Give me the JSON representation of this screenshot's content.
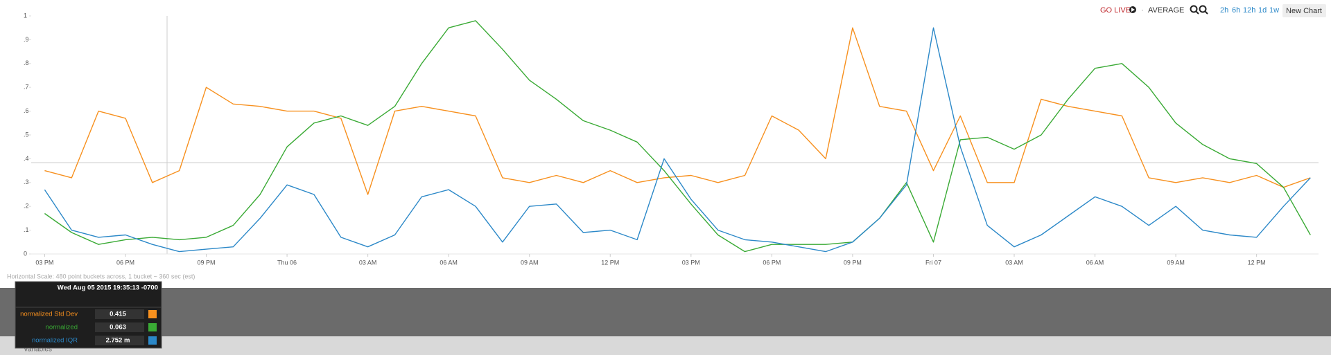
{
  "toolbar": {
    "go_live": "GO LIVE",
    "separator": "·",
    "mode": "AVERAGE",
    "ranges": [
      "2h",
      "6h",
      "12h",
      "1d",
      "1w"
    ],
    "new_chart": "New Chart"
  },
  "chart_data": {
    "type": "line",
    "x": [
      0,
      1,
      2,
      3,
      4,
      5,
      6,
      7,
      8,
      9,
      10,
      11,
      12,
      13,
      14,
      15,
      16,
      17,
      18,
      19,
      20,
      21,
      22,
      23,
      24,
      25,
      26,
      27,
      28,
      29,
      30,
      31,
      32,
      33,
      34,
      35,
      36,
      37,
      38,
      39,
      40,
      41,
      42,
      43,
      44,
      45,
      46,
      47
    ],
    "xlim": [
      -0.5,
      47.3
    ],
    "xticks": [
      {
        "value": 0,
        "label": "03 PM"
      },
      {
        "value": 3,
        "label": "06 PM"
      },
      {
        "value": 6,
        "label": "09 PM"
      },
      {
        "value": 9,
        "label": "Thu 06"
      },
      {
        "value": 12,
        "label": "03 AM"
      },
      {
        "value": 15,
        "label": "06 AM"
      },
      {
        "value": 18,
        "label": "09 AM"
      },
      {
        "value": 21,
        "label": "12 PM"
      },
      {
        "value": 24,
        "label": "03 PM"
      },
      {
        "value": 27,
        "label": "06 PM"
      },
      {
        "value": 30,
        "label": "09 PM"
      },
      {
        "value": 33,
        "label": "Fri 07"
      },
      {
        "value": 36,
        "label": "03 AM"
      },
      {
        "value": 39,
        "label": "06 AM"
      },
      {
        "value": 42,
        "label": "09 AM"
      },
      {
        "value": 45,
        "label": "12 PM"
      }
    ],
    "ylim": [
      0,
      1
    ],
    "yticks": [
      0,
      {
        "value": 0.1,
        "label": ".1"
      },
      {
        "value": 0.2,
        "label": ".2"
      },
      {
        "value": 0.3,
        "label": ".3"
      },
      {
        "value": 0.4,
        "label": ".4"
      },
      {
        "value": 0.5,
        "label": ".5"
      },
      {
        "value": 0.6,
        "label": ".6"
      },
      {
        "value": 0.7,
        "label": ".7"
      },
      {
        "value": 0.8,
        "label": ".8"
      },
      {
        "value": 0.9,
        "label": ".9"
      },
      1
    ],
    "series": [
      {
        "name": "normalized Std Dev",
        "color": "#f7901e",
        "values": [
          0.35,
          0.32,
          0.6,
          0.57,
          0.3,
          0.35,
          0.7,
          0.63,
          0.62,
          0.6,
          0.6,
          0.57,
          0.25,
          0.6,
          0.62,
          0.6,
          0.58,
          0.32,
          0.3,
          0.33,
          0.3,
          0.35,
          0.3,
          0.32,
          0.33,
          0.3,
          0.33,
          0.58,
          0.52,
          0.4,
          0.95,
          0.62,
          0.6,
          0.35,
          0.58,
          0.3,
          0.3,
          0.65,
          0.62,
          0.6,
          0.58,
          0.32,
          0.3,
          0.32,
          0.3,
          0.33,
          0.28,
          0.32
        ]
      },
      {
        "name": "normalized",
        "color": "#3aaa35",
        "values": [
          0.17,
          0.09,
          0.04,
          0.06,
          0.07,
          0.06,
          0.07,
          0.12,
          0.25,
          0.45,
          0.55,
          0.58,
          0.54,
          0.62,
          0.8,
          0.95,
          0.98,
          0.86,
          0.73,
          0.65,
          0.56,
          0.52,
          0.47,
          0.35,
          0.21,
          0.08,
          0.01,
          0.04,
          0.04,
          0.04,
          0.05,
          0.15,
          0.3,
          0.05,
          0.48,
          0.49,
          0.44,
          0.5,
          0.65,
          0.78,
          0.8,
          0.7,
          0.55,
          0.46,
          0.4,
          0.38,
          0.28,
          0.08
        ]
      },
      {
        "name": "normalized IQR",
        "color": "#2b88c8",
        "values": [
          0.27,
          0.1,
          0.07,
          0.08,
          0.04,
          0.01,
          0.02,
          0.03,
          0.15,
          0.29,
          0.25,
          0.07,
          0.03,
          0.08,
          0.24,
          0.27,
          0.2,
          0.05,
          0.2,
          0.21,
          0.09,
          0.1,
          0.06,
          0.4,
          0.23,
          0.1,
          0.06,
          0.05,
          0.03,
          0.01,
          0.05,
          0.15,
          0.29,
          0.95,
          0.45,
          0.12,
          0.03,
          0.08,
          0.16,
          0.24,
          0.2,
          0.12,
          0.2,
          0.1,
          0.08,
          0.07,
          0.2,
          0.32
        ]
      }
    ]
  },
  "scale_note": "Horizontal Scale: 480 point buckets across, 1 bucket ~ 360 sec (est)",
  "variables": "Variables",
  "tooltip": {
    "title": "Wed Aug 05 2015 19:35:13 -0700",
    "rows": [
      {
        "name": "normalized Std Dev",
        "value": "0.415",
        "color": "#f7901e"
      },
      {
        "name": "normalized",
        "value": "0.063",
        "color": "#3aaa35"
      },
      {
        "name": "normalized IQR",
        "value": "2.752 m",
        "color": "#2b88c8"
      }
    ]
  }
}
